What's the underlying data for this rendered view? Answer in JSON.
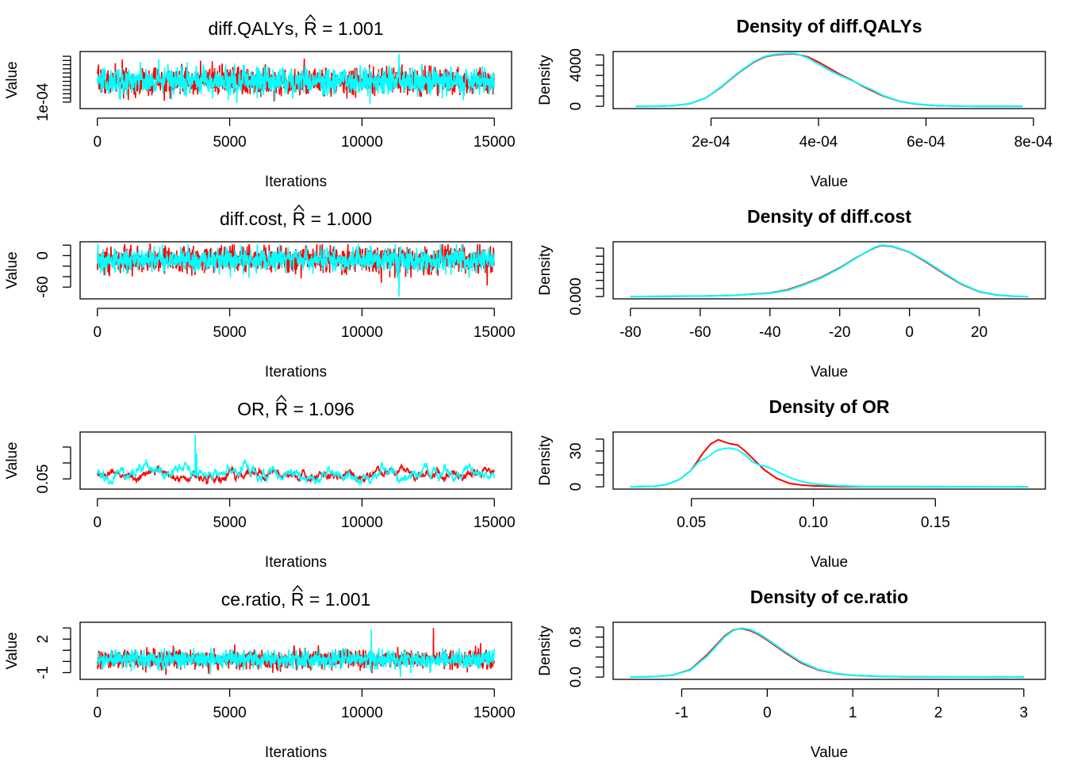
{
  "chart_data": [
    {
      "type": "line",
      "title_param": "diff.QALYs",
      "title_stat": "= 1.001",
      "rhat_symbol": "R",
      "xlabel": "Iterations",
      "ylabel": "Value",
      "xlim": [
        0,
        15000
      ],
      "ylim": [
        5e-05,
        0.00068
      ],
      "x_ticks": [
        {
          "v": 0,
          "label": "0"
        },
        {
          "v": 5000,
          "label": "5000"
        },
        {
          "v": 10000,
          "label": "10000"
        },
        {
          "v": 15000,
          "label": "15000"
        }
      ],
      "y_ticks": [
        {
          "v": 0.0001,
          "label": "1e-04"
        },
        {
          "v": 0.00015
        },
        {
          "v": 0.0002
        },
        {
          "v": 0.00025
        },
        {
          "v": 0.0003
        },
        {
          "v": 0.00035
        },
        {
          "v": 0.0004
        },
        {
          "v": 0.00045
        },
        {
          "v": 0.0005
        },
        {
          "v": 0.00055
        },
        {
          "v": 0.0006
        },
        {
          "v": 0.00065
        }
      ],
      "series": [
        {
          "color": "#ff0000",
          "mean": 0.00035,
          "sd": 8e-05,
          "min": 7e-05,
          "max": 0.00067
        },
        {
          "color": "#00ffff",
          "mean": 0.00035,
          "sd": 8e-05,
          "min": 7e-05,
          "max": 0.00068,
          "spikes": [
            {
              "x": 11400,
              "v": 0.00068
            },
            {
              "x": 10300,
              "v": 8e-05
            }
          ]
        }
      ]
    },
    {
      "type": "line",
      "title": "Density of diff.QALYs",
      "xlabel": "Value",
      "ylabel": "Density",
      "xlim": [
        5e-05,
        0.00079
      ],
      "ylim": [
        0,
        5100
      ],
      "x_ticks": [
        {
          "v": 0.0002,
          "label": "2e-04"
        },
        {
          "v": 0.0004,
          "label": "4e-04"
        },
        {
          "v": 0.0006,
          "label": "6e-04"
        },
        {
          "v": 0.0008,
          "label": "8e-04"
        }
      ],
      "y_ticks": [
        {
          "v": 0,
          "label": "0"
        },
        {
          "v": 1000
        },
        {
          "v": 2000
        },
        {
          "v": 3000
        },
        {
          "v": 4000,
          "label": "4000"
        },
        {
          "v": 5000
        }
      ],
      "series": [
        {
          "color": "#ff0000",
          "x": [
            6e-05,
            0.0001,
            0.00013,
            0.00016,
            0.00019,
            0.00022,
            0.00025,
            0.00028,
            0.0003,
            0.00032,
            0.00034,
            0.00035,
            0.00036,
            0.00038,
            0.0004,
            0.00042,
            0.00044,
            0.00046,
            0.00048,
            0.0005,
            0.00052,
            0.00055,
            0.00058,
            0.00062,
            0.00066,
            0.0007,
            0.00078
          ],
          "y": [
            0,
            10,
            60,
            250,
            800,
            1900,
            3200,
            4300,
            4800,
            5000,
            5080,
            5100,
            5050,
            4800,
            4300,
            3700,
            3100,
            2600,
            2000,
            1500,
            1000,
            500,
            220,
            70,
            20,
            5,
            0
          ]
        },
        {
          "color": "#00ffff",
          "x": [
            6e-05,
            0.0001,
            0.00013,
            0.00016,
            0.00019,
            0.00022,
            0.00025,
            0.00028,
            0.0003,
            0.00032,
            0.00034,
            0.00035,
            0.00036,
            0.00038,
            0.0004,
            0.00042,
            0.00044,
            0.00046,
            0.00048,
            0.0005,
            0.00052,
            0.00055,
            0.00058,
            0.00062,
            0.00066,
            0.0007,
            0.00078
          ],
          "y": [
            0,
            10,
            60,
            260,
            820,
            1950,
            3250,
            4350,
            4850,
            5050,
            5130,
            5150,
            5080,
            4700,
            4100,
            3500,
            3000,
            2550,
            2050,
            1600,
            1050,
            520,
            230,
            75,
            20,
            5,
            0
          ]
        }
      ]
    },
    {
      "type": "line",
      "title_param": "diff.cost",
      "title_stat": "= 1.000",
      "rhat_symbol": "R",
      "xlabel": "Iterations",
      "ylabel": "Value",
      "xlim": [
        0,
        15000
      ],
      "ylim": [
        -78,
        22
      ],
      "x_ticks": [
        {
          "v": 0,
          "label": "0"
        },
        {
          "v": 5000,
          "label": "5000"
        },
        {
          "v": 10000,
          "label": "10000"
        },
        {
          "v": 15000,
          "label": "15000"
        }
      ],
      "y_ticks": [
        {
          "v": -60,
          "label": "-60"
        },
        {
          "v": -40
        },
        {
          "v": -20
        },
        {
          "v": 0,
          "label": "0"
        },
        {
          "v": 20
        }
      ],
      "series": [
        {
          "color": "#ff0000",
          "mean": -8,
          "sd": 13,
          "min": -70,
          "max": 22
        },
        {
          "color": "#00ffff",
          "mean": -8,
          "sd": 11,
          "min": -62,
          "max": 22,
          "spikes": [
            {
              "x": 11400,
              "v": -78
            }
          ]
        }
      ]
    },
    {
      "type": "line",
      "title": "Density of diff.cost",
      "xlabel": "Value",
      "ylabel": "Density",
      "xlim": [
        -80,
        34
      ],
      "ylim": [
        0,
        0.0325
      ],
      "x_ticks": [
        {
          "v": -80,
          "label": "-80"
        },
        {
          "v": -60,
          "label": "-60"
        },
        {
          "v": -40,
          "label": "-40"
        },
        {
          "v": -20,
          "label": "-20"
        },
        {
          "v": 0,
          "label": "0"
        },
        {
          "v": 20,
          "label": "20"
        }
      ],
      "y_ticks": [
        {
          "v": 0,
          "label": "0.000"
        },
        {
          "v": 0.005
        },
        {
          "v": 0.01
        },
        {
          "v": 0.015
        },
        {
          "v": 0.02
        },
        {
          "v": 0.025
        },
        {
          "v": 0.03
        }
      ],
      "series": [
        {
          "color": "#ff0000",
          "x": [
            -80,
            -60,
            -50,
            -40,
            -35,
            -30,
            -25,
            -20,
            -15,
            -10,
            -8,
            -5,
            0,
            5,
            10,
            15,
            20,
            25,
            30,
            34
          ],
          "y": [
            0,
            0.0003,
            0.0008,
            0.0022,
            0.0042,
            0.0078,
            0.0122,
            0.0178,
            0.0244,
            0.0302,
            0.0316,
            0.031,
            0.0275,
            0.021,
            0.014,
            0.0075,
            0.003,
            0.001,
            0.0002,
            0
          ]
        },
        {
          "color": "#00ffff",
          "x": [
            -80,
            -60,
            -50,
            -40,
            -35,
            -30,
            -25,
            -20,
            -15,
            -10,
            -8,
            -5,
            0,
            5,
            10,
            15,
            20,
            25,
            30,
            34
          ],
          "y": [
            0,
            0.0003,
            0.0008,
            0.002,
            0.0038,
            0.0074,
            0.0118,
            0.0175,
            0.0242,
            0.0305,
            0.0318,
            0.0312,
            0.0277,
            0.0215,
            0.0145,
            0.0078,
            0.0032,
            0.0011,
            0.0002,
            0
          ]
        }
      ]
    },
    {
      "type": "line",
      "title_param": "OR",
      "title_stat": "= 1.096",
      "rhat_symbol": "R",
      "xlabel": "Iterations",
      "ylabel": "Value",
      "xlim": [
        0,
        15000
      ],
      "ylim": [
        0.025,
        0.19
      ],
      "x_ticks": [
        {
          "v": 0,
          "label": "0"
        },
        {
          "v": 5000,
          "label": "5000"
        },
        {
          "v": 10000,
          "label": "10000"
        },
        {
          "v": 15000,
          "label": "15000"
        }
      ],
      "y_ticks": [
        {
          "v": 0.05,
          "label": "0.05"
        },
        {
          "v": 0.1
        },
        {
          "v": 0.15
        }
      ],
      "series": [
        {
          "color": "#ff0000",
          "mean": 0.062,
          "sd": 0.01,
          "min": 0.035,
          "max": 0.11
        },
        {
          "color": "#00ffff",
          "mean": 0.068,
          "sd": 0.013,
          "min": 0.035,
          "max": 0.13,
          "spikes": [
            {
              "x": 3700,
              "v": 0.188
            },
            {
              "x": 3750,
              "v": 0.13
            }
          ]
        }
      ]
    },
    {
      "type": "line",
      "title": "Density of OR",
      "xlabel": "Value",
      "ylabel": "Density",
      "xlim": [
        0.025,
        0.188
      ],
      "ylim": [
        0,
        44
      ],
      "x_ticks": [
        {
          "v": 0.05,
          "label": "0.05"
        },
        {
          "v": 0.1,
          "label": "0.10"
        },
        {
          "v": 0.15,
          "label": "0.15"
        }
      ],
      "y_ticks": [
        {
          "v": 0,
          "label": "0"
        },
        {
          "v": 10
        },
        {
          "v": 20
        },
        {
          "v": 30,
          "label": "30"
        },
        {
          "v": 40
        }
      ],
      "series": [
        {
          "color": "#ff0000",
          "x": [
            0.025,
            0.035,
            0.04,
            0.045,
            0.05,
            0.055,
            0.058,
            0.061,
            0.063,
            0.066,
            0.069,
            0.072,
            0.075,
            0.08,
            0.085,
            0.09,
            0.095,
            0.1,
            0.11,
            0.12,
            0.188
          ],
          "y": [
            0,
            0.5,
            2,
            6,
            14,
            29,
            36,
            39.5,
            38,
            36,
            35,
            30,
            24,
            14,
            7,
            3,
            1.5,
            0.8,
            0.3,
            0.1,
            0
          ]
        },
        {
          "color": "#00ffff",
          "x": [
            0.025,
            0.035,
            0.04,
            0.045,
            0.05,
            0.053,
            0.056,
            0.06,
            0.063,
            0.066,
            0.069,
            0.072,
            0.075,
            0.078,
            0.08,
            0.083,
            0.086,
            0.09,
            0.095,
            0.1,
            0.11,
            0.12,
            0.188
          ],
          "y": [
            0,
            0.5,
            2,
            6,
            14,
            21,
            24,
            30,
            32,
            32.5,
            31,
            27,
            21,
            18,
            17.5,
            15,
            12,
            8,
            4.5,
            2.5,
            1,
            0.3,
            0
          ]
        }
      ]
    },
    {
      "type": "line",
      "title_param": "ce.ratio",
      "title_stat": "= 1.001",
      "rhat_symbol": "R",
      "xlabel": "Iterations",
      "ylabel": "Value",
      "xlim": [
        0,
        15000
      ],
      "ylim": [
        -1.4,
        3.3
      ],
      "x_ticks": [
        {
          "v": 0,
          "label": "0"
        },
        {
          "v": 5000,
          "label": "5000"
        },
        {
          "v": 10000,
          "label": "10000"
        },
        {
          "v": 15000,
          "label": "15000"
        }
      ],
      "y_ticks": [
        {
          "v": -1,
          "label": "-1"
        },
        {
          "v": 0
        },
        {
          "v": 1
        },
        {
          "v": 2,
          "label": "2"
        },
        {
          "v": 3
        }
      ],
      "series": [
        {
          "color": "#ff0000",
          "mean": 0.2,
          "sd": 0.42,
          "min": -1.2,
          "max": 1.9,
          "spikes": [
            {
              "x": 12700,
              "v": 3.0
            }
          ]
        },
        {
          "color": "#00ffff",
          "mean": 0.2,
          "sd": 0.4,
          "min": -1.2,
          "max": 1.9,
          "spikes": [
            {
              "x": 10350,
              "v": 2.85
            },
            {
              "x": 11450,
              "v": -1.4
            }
          ]
        }
      ]
    },
    {
      "type": "line",
      "title": "Density of ce.ratio",
      "xlabel": "Value",
      "ylabel": "Density",
      "xlim": [
        -1.6,
        3.05
      ],
      "ylim": [
        0,
        1.05
      ],
      "x_ticks": [
        {
          "v": -1,
          "label": "-1"
        },
        {
          "v": 0,
          "label": "0"
        },
        {
          "v": 1,
          "label": "1"
        },
        {
          "v": 2,
          "label": "2"
        },
        {
          "v": 3,
          "label": "3"
        }
      ],
      "y_ticks": [
        {
          "v": 0,
          "label": "0.0"
        },
        {
          "v": 0.2
        },
        {
          "v": 0.4
        },
        {
          "v": 0.6
        },
        {
          "v": 0.8,
          "label": "0.8"
        },
        {
          "v": 1.0
        }
      ],
      "series": [
        {
          "color": "#ff0000",
          "x": [
            -1.6,
            -1.3,
            -1.1,
            -0.9,
            -0.7,
            -0.5,
            -0.4,
            -0.3,
            -0.2,
            -0.1,
            0,
            0.2,
            0.4,
            0.6,
            0.8,
            1.0,
            1.3,
            1.6,
            2.0,
            3.0
          ],
          "y": [
            0,
            0.01,
            0.04,
            0.15,
            0.45,
            0.82,
            0.94,
            0.97,
            0.93,
            0.85,
            0.74,
            0.5,
            0.28,
            0.14,
            0.07,
            0.035,
            0.015,
            0.007,
            0.003,
            0
          ]
        },
        {
          "color": "#00ffff",
          "x": [
            -1.6,
            -1.3,
            -1.1,
            -0.9,
            -0.7,
            -0.5,
            -0.4,
            -0.3,
            -0.2,
            -0.1,
            0,
            0.2,
            0.4,
            0.6,
            0.8,
            1.0,
            1.3,
            1.6,
            2.0,
            3.0
          ],
          "y": [
            0,
            0.01,
            0.04,
            0.14,
            0.42,
            0.8,
            0.93,
            0.98,
            0.95,
            0.87,
            0.76,
            0.52,
            0.3,
            0.15,
            0.075,
            0.038,
            0.016,
            0.008,
            0.003,
            0
          ]
        }
      ]
    }
  ]
}
